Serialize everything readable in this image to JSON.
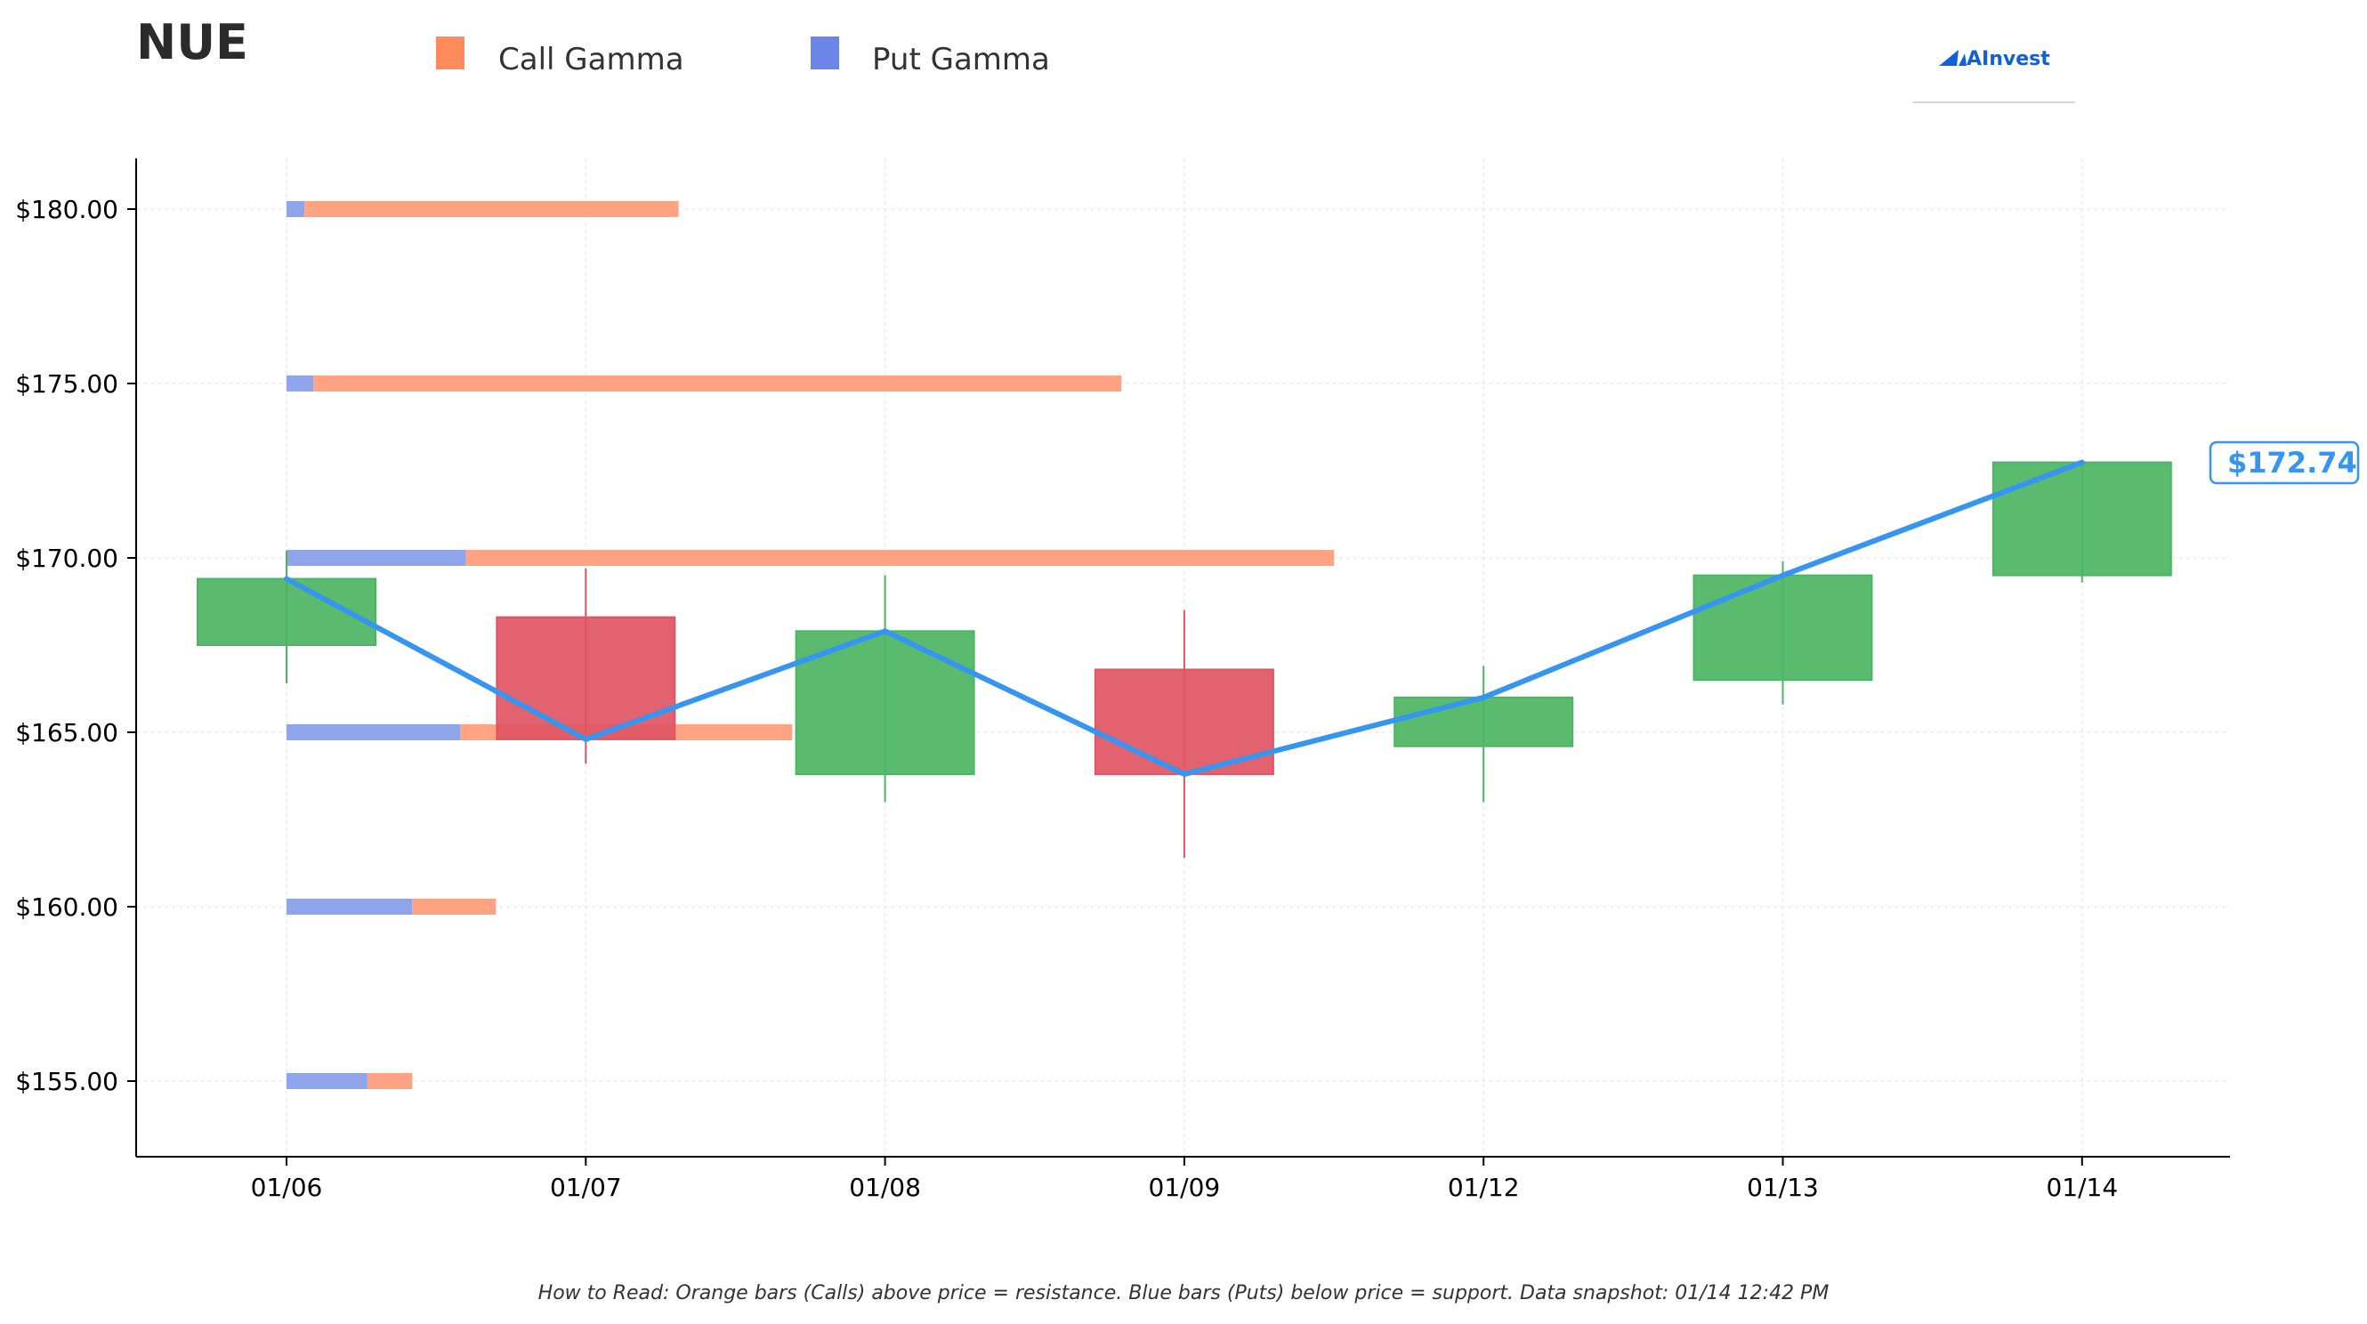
{
  "ticker": "NUE",
  "legend": [
    {
      "label": "Call Gamma",
      "color": "#ff8a5c"
    },
    {
      "label": "Put Gamma",
      "color": "#6b86e6"
    }
  ],
  "logo_text": "AInvest",
  "footnote": "How to Read: Orange bars (Calls) above price = resistance. Blue bars (Puts) below price = support. Data snapshot: 01/14 12:42 PM",
  "colors": {
    "call": "#ffa383",
    "put": "#8ea5ec",
    "up": "#4cb563",
    "down": "#e05563",
    "line": "#3595f0",
    "logo": "#1260d9"
  },
  "chart_data": {
    "type": "candlestick",
    "ylim": [
      152.8,
      181.5
    ],
    "grid": true,
    "dates": [
      "01/06",
      "01/07",
      "01/08",
      "01/09",
      "01/12",
      "01/13",
      "01/14"
    ],
    "yticks": [
      155,
      160,
      165,
      170,
      175,
      180
    ],
    "ytick_labels": [
      "$155.00",
      "$160.00",
      "$165.00",
      "$170.00",
      "$175.00",
      "$180.00"
    ],
    "candles": [
      {
        "date": "01/06",
        "open": 167.5,
        "high": 170.2,
        "low": 166.4,
        "close": 169.4
      },
      {
        "date": "01/07",
        "open": 168.3,
        "high": 169.7,
        "low": 164.1,
        "close": 164.8
      },
      {
        "date": "01/08",
        "open": 163.8,
        "high": 169.5,
        "low": 163.0,
        "close": 167.9
      },
      {
        "date": "01/09",
        "open": 166.8,
        "high": 168.5,
        "low": 161.4,
        "close": 163.8
      },
      {
        "date": "01/12",
        "open": 164.6,
        "high": 166.9,
        "low": 163.0,
        "close": 166.0
      },
      {
        "date": "01/13",
        "open": 166.5,
        "high": 169.9,
        "low": 165.8,
        "close": 169.5
      },
      {
        "date": "01/14",
        "open": 169.5,
        "high": 172.7,
        "low": 169.3,
        "close": 172.74
      }
    ],
    "close_line": [
      169.4,
      164.8,
      167.9,
      163.8,
      166.0,
      169.5,
      172.74
    ],
    "last_price_label": "$172.74",
    "gamma_scale_max": 3.5,
    "gamma_levels": [
      {
        "strike": 180,
        "put": 0.06,
        "call": 1.25
      },
      {
        "strike": 175,
        "put": 0.09,
        "call": 2.7
      },
      {
        "strike": 170,
        "put": 0.6,
        "call": 2.9
      },
      {
        "strike": 165,
        "put": 0.58,
        "call": 1.11
      },
      {
        "strike": 160,
        "put": 0.42,
        "call": 0.28
      },
      {
        "strike": 155,
        "put": 0.27,
        "call": 0.15
      }
    ]
  }
}
